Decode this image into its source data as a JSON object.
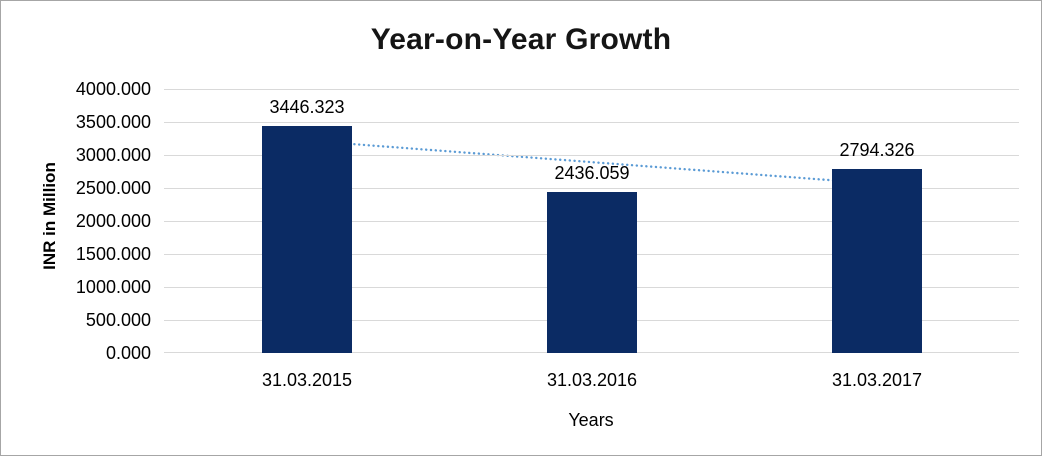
{
  "chart": {
    "colors": {
      "bar": "#0b2b64",
      "trendline": "#5b9bd5",
      "gridline": "#d9d9d9",
      "title_text": "#151515",
      "axis_text": "#000000",
      "frame_border": "#a6a6a6"
    }
  },
  "chart_data": {
    "type": "bar",
    "title": "Year-on-Year Growth",
    "xlabel": "Years",
    "ylabel": "INR in Million",
    "categories": [
      "31.03.2015",
      "31.03.2016",
      "31.03.2017"
    ],
    "values": [
      3446.323,
      2436.059,
      2794.326
    ],
    "data_labels": [
      "3446.323",
      "2436.059",
      "2794.326"
    ],
    "yticks": [
      "4000.000",
      "3500.000",
      "3000.000",
      "2500.000",
      "2000.000",
      "1500.000",
      "1000.000",
      "500.000",
      "0.000"
    ],
    "ylim": [
      0,
      4000
    ],
    "ytick_step": 500,
    "grid": true,
    "legend": false,
    "trendline": {
      "type": "linear",
      "style": "dotted",
      "color": "#5b9bd5",
      "start_value": 3218.2,
      "end_value": 2566.2
    }
  }
}
